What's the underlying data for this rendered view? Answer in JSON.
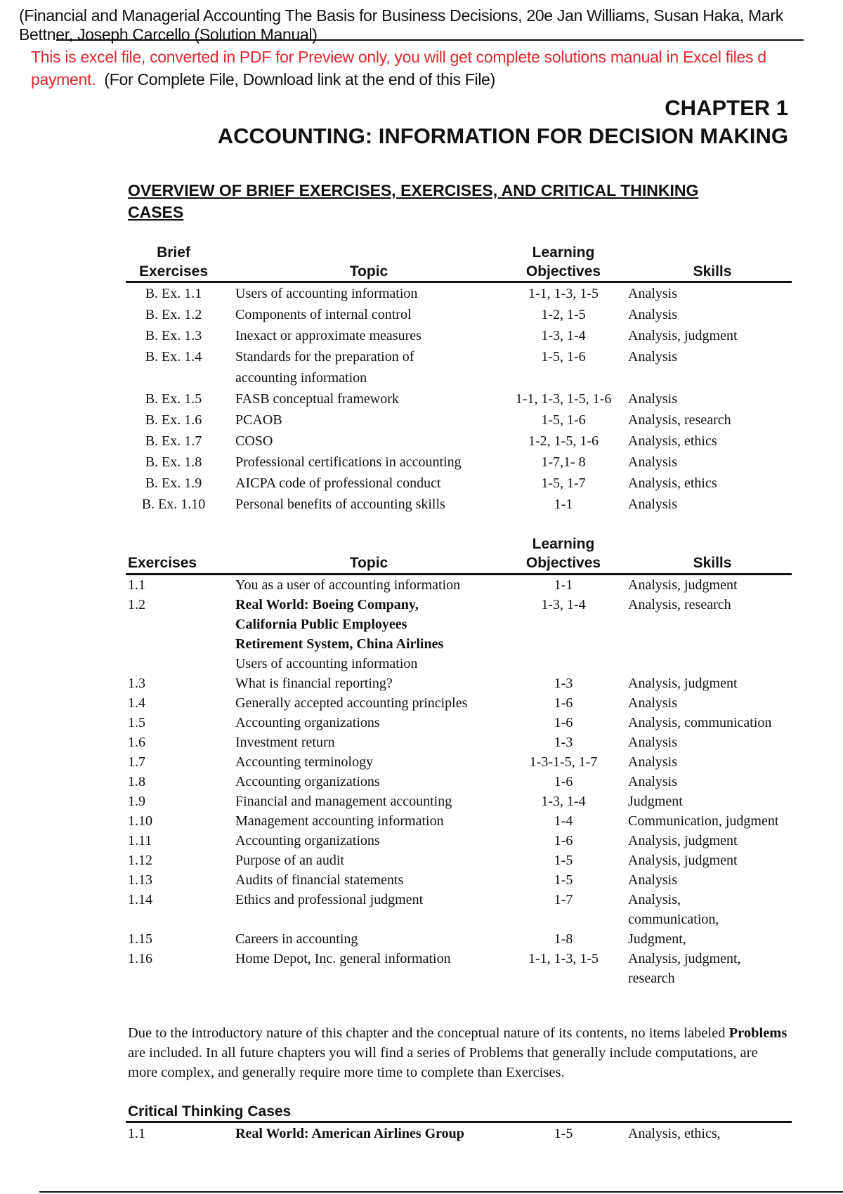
{
  "header": {
    "source_line1": "(Financial and Managerial Accounting The Basis for Business Decisions, 20e Jan Williams, Susan Haka, Mark",
    "source_line2": "Bettner, Joseph Carcello (Solution Manual)",
    "notice_red_line1": "This is excel file, converted in  PDF for Preview only, you will get complete solutions manual in Excel files d",
    "notice_red_line2": "payment.",
    "notice_black": "(For Complete File, Download link at the end of this File)"
  },
  "chapter": "CHAPTER 1",
  "title": "ACCOUNTING: INFORMATION FOR DECISION MAKING",
  "overview_heading": "OVERVIEW OF BRIEF EXERCISES, EXERCISES, AND CRITICAL THINKING CASES",
  "brief_table": {
    "headers": {
      "col1_line1": "Brief",
      "col1_line2": "Exercises",
      "topic": "Topic",
      "lo_line1": "Learning",
      "lo_line2": "Objectives",
      "skills": "Skills"
    },
    "rows": [
      {
        "id": "B. Ex. 1.1",
        "topic": [
          "Users of accounting information"
        ],
        "lo": "1-1, 1-3, 1-5",
        "skills": [
          "Analysis"
        ]
      },
      {
        "id": "B. Ex. 1.2",
        "topic": [
          "Components of internal control"
        ],
        "lo": "1-2, 1-5",
        "skills": [
          "Analysis"
        ]
      },
      {
        "id": "B. Ex. 1.3",
        "topic": [
          "Inexact or approximate measures"
        ],
        "lo": "1-3, 1-4",
        "skills": [
          "Analysis, judgment"
        ]
      },
      {
        "id": "B. Ex. 1.4",
        "topic": [
          "Standards for the preparation of",
          "accounting information"
        ],
        "lo": "1-5, 1-6",
        "skills": [
          "Analysis"
        ]
      },
      {
        "id": "B. Ex. 1.5",
        "topic": [
          "FASB conceptual framework"
        ],
        "lo": "1-1, 1-3, 1-5, 1-6",
        "skills": [
          "Analysis"
        ]
      },
      {
        "id": "B. Ex. 1.6",
        "topic": [
          "PCAOB"
        ],
        "lo": "1-5, 1-6",
        "skills": [
          "Analysis, research"
        ]
      },
      {
        "id": "B. Ex. 1.7",
        "topic": [
          "COSO"
        ],
        "lo": "1-2, 1-5, 1-6",
        "skills": [
          "Analysis, ethics"
        ]
      },
      {
        "id": "B. Ex. 1.8",
        "topic": [
          "Professional certifications in accounting"
        ],
        "lo": "1-7,1- 8",
        "skills": [
          "Analysis"
        ]
      },
      {
        "id": "B. Ex. 1.9",
        "topic": [
          "AICPA code of professional conduct"
        ],
        "lo": "1-5, 1-7",
        "skills": [
          "Analysis, ethics"
        ]
      },
      {
        "id": "B. Ex. 1.10",
        "topic": [
          "Personal benefits of accounting skills"
        ],
        "lo": "1-1",
        "skills": [
          "Analysis"
        ]
      }
    ]
  },
  "exercise_table": {
    "headers": {
      "col1": "Exercises",
      "topic": "Topic",
      "lo_line1": "Learning",
      "lo_line2": "Objectives",
      "skills": "Skills"
    },
    "rows": [
      {
        "id": "1.1",
        "topic": [
          "You as a user of accounting information"
        ],
        "lo": "1-1",
        "skills": [
          "Analysis, judgment"
        ]
      },
      {
        "id": "1.2",
        "topic_bold": [
          "Real World: Boeing Company,",
          "California Public Employees",
          "Retirement System, China Airlines"
        ],
        "topic": [
          "Users of accounting information"
        ],
        "lo": "1-3, 1-4",
        "skills": [
          "Analysis, research"
        ]
      },
      {
        "id": "1.3",
        "topic": [
          "What is financial reporting?"
        ],
        "lo": "1-3",
        "skills": [
          "Analysis, judgment"
        ]
      },
      {
        "id": "1.4",
        "topic": [
          "Generally accepted accounting principles"
        ],
        "lo": "1-6",
        "skills": [
          "Analysis"
        ]
      },
      {
        "id": "1.5",
        "topic": [
          "Accounting organizations"
        ],
        "lo": "1-6",
        "skills": [
          "Analysis, communication"
        ]
      },
      {
        "id": "1.6",
        "topic": [
          "Investment return"
        ],
        "lo": "1-3",
        "skills": [
          "Analysis"
        ]
      },
      {
        "id": "1.7",
        "topic": [
          "Accounting terminology"
        ],
        "lo": "1-3-1-5, 1-7",
        "skills": [
          "Analysis"
        ]
      },
      {
        "id": "1.8",
        "topic": [
          "Accounting organizations"
        ],
        "lo": "1-6",
        "skills": [
          "Analysis"
        ]
      },
      {
        "id": "1.9",
        "topic": [
          "Financial and management accounting"
        ],
        "lo": "1-3, 1-4",
        "skills": [
          "Judgment"
        ]
      },
      {
        "id": "1.10",
        "topic": [
          "Management accounting information"
        ],
        "lo": "1-4",
        "skills": [
          "Communication, judgment"
        ]
      },
      {
        "id": "1.11",
        "topic": [
          "Accounting organizations"
        ],
        "lo": "1-6",
        "skills": [
          "Analysis, judgment"
        ]
      },
      {
        "id": "1.12",
        "topic": [
          "Purpose of an audit"
        ],
        "lo": "1-5",
        "skills": [
          "Analysis, judgment"
        ]
      },
      {
        "id": "1.13",
        "topic": [
          "Audits of financial statements"
        ],
        "lo": "1-5",
        "skills": [
          "Analysis"
        ]
      },
      {
        "id": "1.14",
        "topic": [
          "Ethics and professional judgment"
        ],
        "lo": "1-7",
        "skills": [
          "Analysis,",
          "communication,"
        ]
      },
      {
        "id": "1.15",
        "topic": [
          "Careers in accounting"
        ],
        "lo": "1-8",
        "skills": [
          "Judgment,"
        ]
      },
      {
        "id": "1.16",
        "topic": [
          "Home Depot, Inc. general information"
        ],
        "lo": "1-1, 1-3, 1-5",
        "skills": [
          "Analysis, judgment,",
          "research"
        ]
      }
    ]
  },
  "paragraph": {
    "part1": "Due to the introductory nature of this chapter and the conceptual nature of its contents, no items labeled ",
    "bold": "Problems",
    "part2": " are included. In all future chapters you will find a series of Problems that generally include computations, are more complex, and generally require more time to complete than Exercises."
  },
  "critical_thinking": {
    "heading": "Critical Thinking Cases",
    "rows": [
      {
        "id": "1.1",
        "topic_bold": [
          "Real World: American Airlines Group"
        ],
        "lo": "1-5",
        "skills": [
          "Analysis, ethics,"
        ]
      }
    ]
  },
  "colors": {
    "notice_red": "#e0282e",
    "text": "#111111"
  }
}
